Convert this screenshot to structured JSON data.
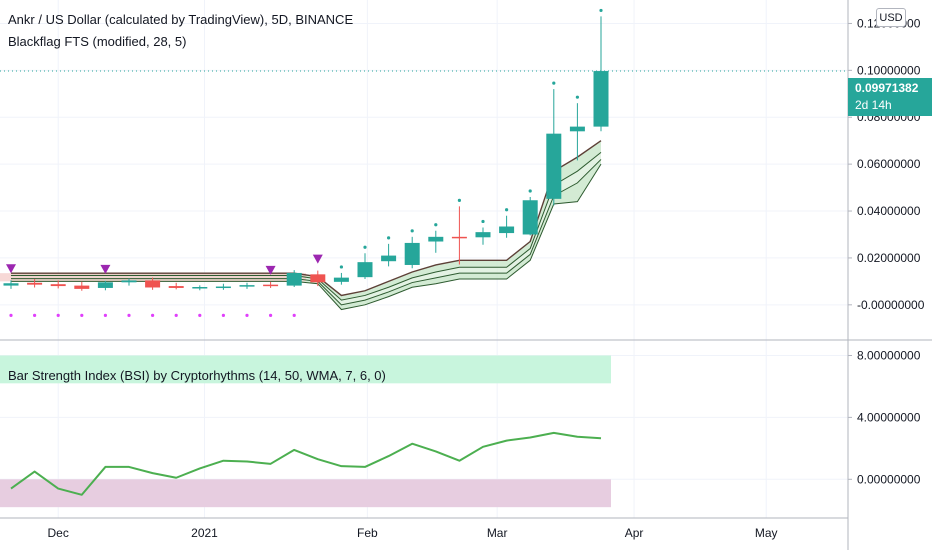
{
  "header": {
    "symbol_title": "Ankr / US Dollar (calculated by TradingView), 5D, BINANCE",
    "indicator_title": "Blackflag FTS (modified, 28, 5)",
    "currency_label": "USD"
  },
  "price_tag": {
    "value": "0.09971382",
    "countdown": "2d 14h"
  },
  "colors": {
    "up": "#26a69a",
    "down": "#ef5350",
    "signal": "#9c27b0",
    "trail": "#4caf50",
    "bsi_line": "#4caf50",
    "upper_zone": "#c8f5dd",
    "lower_zone": "#e7cde0"
  },
  "chart_data": [
    {
      "type": "candlestick",
      "ylim": [
        -0.015,
        0.13
      ],
      "y_ticks": [
        0.12,
        0.1,
        0.08,
        0.06,
        0.04,
        0.02,
        0.0
      ],
      "y_tick_labels": [
        "0.12000000",
        "0.10000000",
        "0.08000000",
        "0.06000000",
        "0.04000000",
        "0.02000000",
        "-0.00000000"
      ],
      "last_price": 0.09971382,
      "candles": [
        {
          "x": 0,
          "o": 0.0082,
          "h": 0.0105,
          "l": 0.0068,
          "c": 0.0092
        },
        {
          "x": 1,
          "o": 0.0094,
          "h": 0.011,
          "l": 0.0074,
          "c": 0.0086
        },
        {
          "x": 2,
          "o": 0.0088,
          "h": 0.0104,
          "l": 0.007,
          "c": 0.008
        },
        {
          "x": 3,
          "o": 0.0082,
          "h": 0.0099,
          "l": 0.006,
          "c": 0.0068
        },
        {
          "x": 4,
          "o": 0.0072,
          "h": 0.0102,
          "l": 0.0062,
          "c": 0.0096
        },
        {
          "x": 5,
          "o": 0.0096,
          "h": 0.0112,
          "l": 0.0082,
          "c": 0.0104
        },
        {
          "x": 6,
          "o": 0.0104,
          "h": 0.0116,
          "l": 0.0064,
          "c": 0.0074
        },
        {
          "x": 7,
          "o": 0.008,
          "h": 0.0094,
          "l": 0.0066,
          "c": 0.0072
        },
        {
          "x": 8,
          "o": 0.007,
          "h": 0.0083,
          "l": 0.0062,
          "c": 0.0076
        },
        {
          "x": 9,
          "o": 0.0074,
          "h": 0.009,
          "l": 0.0064,
          "c": 0.0078
        },
        {
          "x": 10,
          "o": 0.0078,
          "h": 0.0094,
          "l": 0.0068,
          "c": 0.0084
        },
        {
          "x": 11,
          "o": 0.0086,
          "h": 0.0098,
          "l": 0.0072,
          "c": 0.008
        },
        {
          "x": 12,
          "o": 0.0082,
          "h": 0.0148,
          "l": 0.0076,
          "c": 0.0136
        },
        {
          "x": 13,
          "o": 0.013,
          "h": 0.0146,
          "l": 0.008,
          "c": 0.0096
        },
        {
          "x": 14,
          "o": 0.0098,
          "h": 0.0136,
          "l": 0.0086,
          "c": 0.0116
        },
        {
          "x": 15,
          "o": 0.0118,
          "h": 0.022,
          "l": 0.011,
          "c": 0.0182
        },
        {
          "x": 16,
          "o": 0.0186,
          "h": 0.026,
          "l": 0.0164,
          "c": 0.021
        },
        {
          "x": 17,
          "o": 0.017,
          "h": 0.029,
          "l": 0.0156,
          "c": 0.0264
        },
        {
          "x": 18,
          "o": 0.027,
          "h": 0.0316,
          "l": 0.0222,
          "c": 0.029
        },
        {
          "x": 19,
          "o": 0.029,
          "h": 0.042,
          "l": 0.0172,
          "c": 0.0286
        },
        {
          "x": 20,
          "o": 0.0288,
          "h": 0.033,
          "l": 0.0256,
          "c": 0.031
        },
        {
          "x": 21,
          "o": 0.0306,
          "h": 0.038,
          "l": 0.0286,
          "c": 0.0334
        },
        {
          "x": 22,
          "o": 0.03,
          "h": 0.046,
          "l": 0.0296,
          "c": 0.0446
        },
        {
          "x": 23,
          "o": 0.0452,
          "h": 0.092,
          "l": 0.0424,
          "c": 0.073
        },
        {
          "x": 24,
          "o": 0.074,
          "h": 0.086,
          "l": 0.0616,
          "c": 0.076
        },
        {
          "x": 25,
          "o": 0.076,
          "h": 0.123,
          "l": 0.074,
          "c": 0.0997
        }
      ],
      "trail_lines": [
        {
          "name": "",
          "values": [
            0.0135,
            0.0135,
            0.0135,
            0.0135,
            0.0135,
            0.0135,
            0.0135,
            0.0135,
            0.0135,
            0.0135,
            0.0135,
            0.0135,
            0.0135,
            0.012,
            0.004,
            0.006,
            0.01,
            0.014,
            0.017,
            0.019,
            0.019,
            0.019,
            0.027,
            0.057,
            0.063,
            0.07
          ]
        },
        {
          "name": "",
          "values": [
            0.0125,
            0.0125,
            0.0125,
            0.0125,
            0.0125,
            0.0125,
            0.0125,
            0.0125,
            0.0125,
            0.0125,
            0.0125,
            0.0125,
            0.0125,
            0.011,
            0.002,
            0.004,
            0.0075,
            0.0115,
            0.014,
            0.016,
            0.016,
            0.016,
            0.024,
            0.051,
            0.057,
            0.065
          ]
        },
        {
          "name": "",
          "values": [
            0.0112,
            0.0112,
            0.0112,
            0.0112,
            0.0112,
            0.0112,
            0.0112,
            0.0112,
            0.0112,
            0.0112,
            0.0112,
            0.0112,
            0.0112,
            0.01,
            0.0,
            0.002,
            0.0055,
            0.0095,
            0.0115,
            0.0135,
            0.0135,
            0.0135,
            0.0215,
            0.0465,
            0.052,
            0.062
          ]
        },
        {
          "name": "",
          "values": [
            0.01,
            0.01,
            0.01,
            0.01,
            0.01,
            0.01,
            0.01,
            0.01,
            0.01,
            0.01,
            0.01,
            0.01,
            0.01,
            0.009,
            -0.002,
            0.0,
            0.0035,
            0.0075,
            0.009,
            0.011,
            0.011,
            0.011,
            0.019,
            0.043,
            0.044,
            0.06
          ]
        }
      ],
      "sell_markers_x": [
        0,
        4,
        11,
        13
      ],
      "top_dots_x": [
        14,
        15,
        16,
        17,
        18,
        19,
        20,
        21,
        22,
        23,
        24,
        25
      ],
      "bottom_dots_x": [
        0,
        1,
        2,
        3,
        4,
        5,
        6,
        7,
        8,
        9,
        10,
        11,
        12
      ]
    },
    {
      "type": "line",
      "title": "Bar Strength Index (BSI) by Cryptorhythms (14, 50, WMA, 7, 6, 0)",
      "ylim": [
        -2.5,
        9.0
      ],
      "y_ticks": [
        8.0,
        4.0,
        0.0
      ],
      "y_tick_labels": [
        "8.00000000",
        "4.00000000",
        "0.00000000"
      ],
      "upper_zone": [
        6.2,
        8.0
      ],
      "lower_zone": [
        -1.8,
        0.0
      ],
      "series": [
        {
          "name": "",
          "values": [
            -0.6,
            0.5,
            -0.6,
            -1.0,
            0.8,
            0.8,
            0.4,
            0.1,
            0.7,
            1.2,
            1.15,
            1.0,
            1.9,
            1.3,
            0.85,
            0.8,
            1.5,
            2.3,
            1.8,
            1.2,
            2.1,
            2.5,
            2.7,
            3.0,
            2.75,
            2.65
          ]
        }
      ]
    }
  ],
  "x_axis": {
    "labels": [
      {
        "text": "Dec",
        "pos": 2.0
      },
      {
        "text": "2021",
        "pos": 8.2
      },
      {
        "text": "Feb",
        "pos": 15.1
      },
      {
        "text": "Mar",
        "pos": 20.6
      },
      {
        "text": "Apr",
        "pos": 26.4
      },
      {
        "text": "May",
        "pos": 32.0
      }
    ]
  }
}
